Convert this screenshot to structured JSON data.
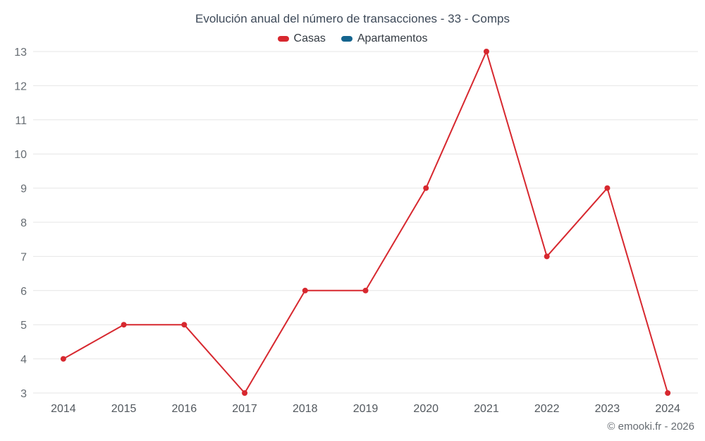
{
  "chart": {
    "title": "Evolución anual del número de transacciones - 33 - Comps",
    "footer": "© emooki.fr - 2026"
  },
  "chart_data": {
    "type": "line",
    "title": "Evolución anual del número de transacciones - 33 - Comps",
    "categories": [
      "2014",
      "2015",
      "2016",
      "2017",
      "2018",
      "2019",
      "2020",
      "2021",
      "2022",
      "2023",
      "2024"
    ],
    "series": [
      {
        "name": "Casas",
        "color": "#d7282f",
        "values": [
          4,
          5,
          5,
          3,
          6,
          6,
          9,
          13,
          7,
          9,
          3
        ]
      },
      {
        "name": "Apartamentos",
        "color": "#15658f",
        "values": []
      }
    ],
    "xlabel": "",
    "ylabel": "",
    "ylim": [
      3,
      13
    ],
    "ytick_step": 1,
    "grid": true,
    "grid_color": "#e6e6e6",
    "legend_position": "top",
    "marker_radius": 4,
    "line_width": 2
  }
}
